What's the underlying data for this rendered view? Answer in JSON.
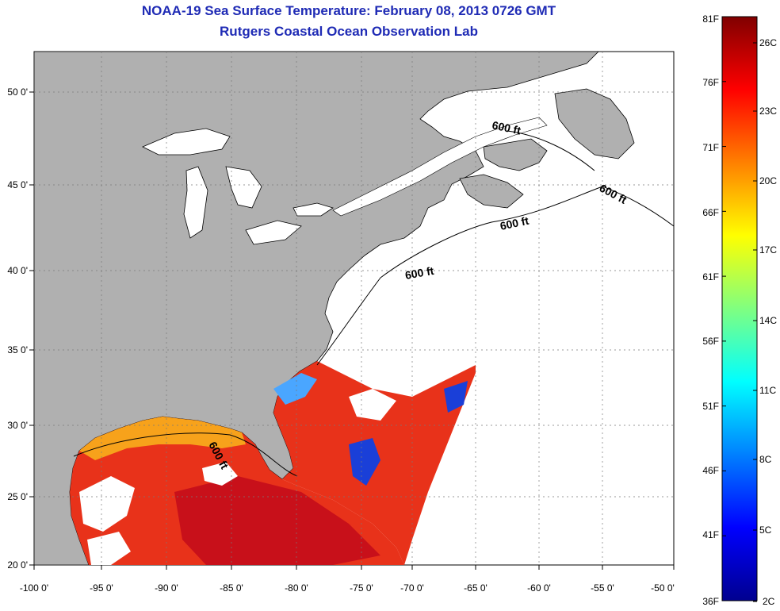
{
  "title": "NOAA-19 Sea Surface Temperature:  February 08, 2013 0726 GMT",
  "subtitle": "Rutgers Coastal Ocean Observation Lab",
  "map": {
    "lon_ticks": [
      "-100 0'",
      "-95 0'",
      "-90 0'",
      "-85 0'",
      "-80 0'",
      "-75 0'",
      "-70 0'",
      "-65 0'",
      "-60 0'",
      "-55 0'",
      "-50 0'"
    ],
    "lat_ticks": [
      "50 0'",
      "45 0'",
      "40 0'",
      "35 0'",
      "30 0'",
      "25 0'",
      "20 0'"
    ],
    "contour_label": "600 ft",
    "colors": {
      "land": "#b0b0b0",
      "ocean_nodata": "#ffffff",
      "grid": "#7a7a7a"
    }
  },
  "colorbar": {
    "fahrenheit": [
      "81F",
      "76F",
      "71F",
      "66F",
      "61F",
      "56F",
      "51F",
      "46F",
      "41F",
      "36F"
    ],
    "celsius": [
      "26C",
      "23C",
      "20C",
      "17C",
      "14C",
      "11C",
      "8C",
      "5C",
      "2C"
    ],
    "gradient": [
      "#00008f",
      "#0000ff",
      "#0080ff",
      "#00ffff",
      "#80ff80",
      "#ffff00",
      "#ff8000",
      "#ff0000",
      "#800000"
    ]
  }
}
